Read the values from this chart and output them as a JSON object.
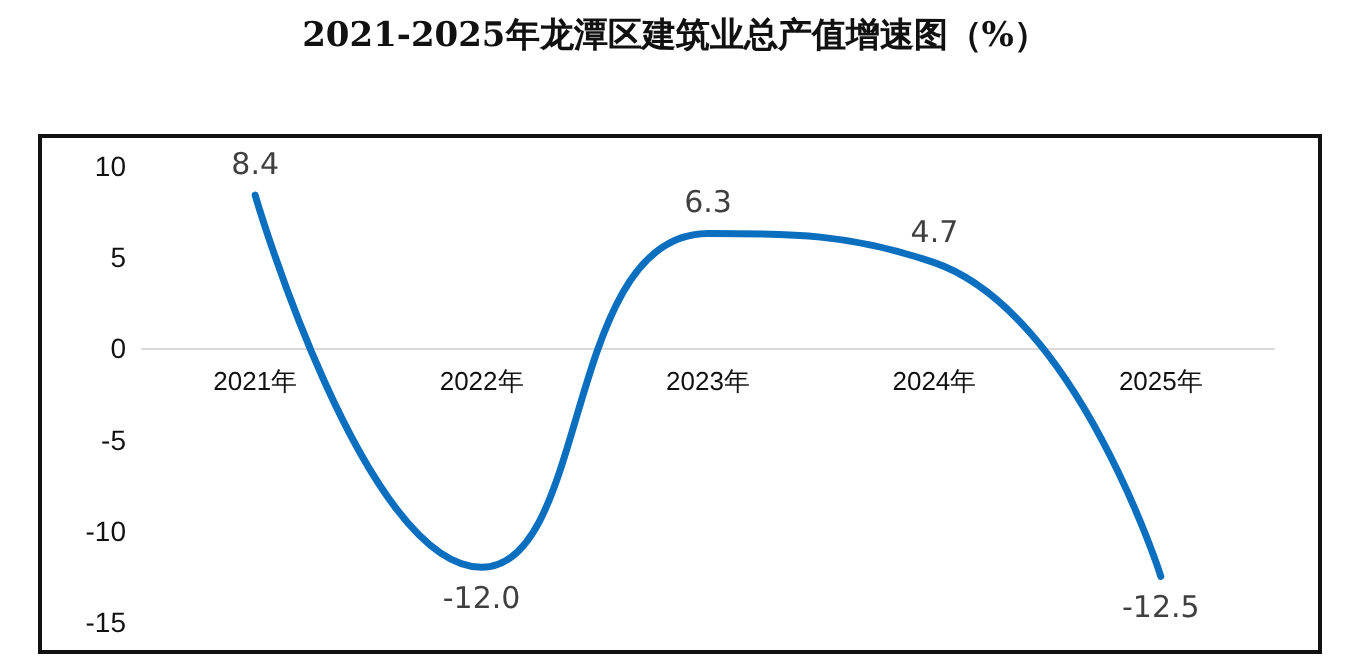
{
  "chart_data": {
    "type": "line",
    "title": "2021-2025年龙潭区建筑业总产值增速图（%）",
    "categories": [
      "2021年",
      "2022年",
      "2023年",
      "2024年",
      "2025年"
    ],
    "series": [
      {
        "color": "#0b6fbf",
        "values": [
          8.4,
          -12.0,
          6.3,
          4.7,
          -12.5
        ],
        "value_labels": [
          "8.4",
          "-12.0",
          "6.3",
          "4.7",
          "-12.5"
        ]
      }
    ],
    "ylim": [
      -15,
      10
    ],
    "yticks": [
      -15,
      -10,
      -5,
      0,
      5,
      10
    ],
    "marker": "none",
    "line_style": "solid"
  }
}
